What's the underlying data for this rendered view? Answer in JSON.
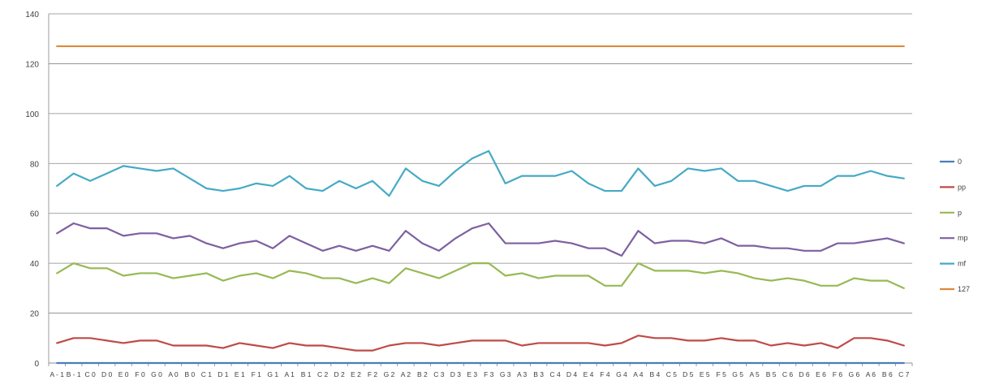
{
  "chart_data": {
    "type": "line",
    "title": "",
    "xlabel": "",
    "ylabel": "",
    "ylim": [
      0,
      140
    ],
    "yticks": [
      0,
      20,
      40,
      60,
      80,
      100,
      120,
      140
    ],
    "grid": "horizontal",
    "legend_position": "right",
    "categories": [
      "A-1",
      "B-1",
      "C0",
      "D0",
      "E0",
      "F0",
      "G0",
      "A0",
      "B0",
      "C1",
      "D1",
      "E1",
      "F1",
      "G1",
      "A1",
      "B1",
      "C2",
      "D2",
      "E2",
      "F2",
      "G2",
      "A2",
      "B2",
      "C3",
      "D3",
      "E3",
      "F3",
      "G3",
      "A3",
      "B3",
      "C4",
      "D4",
      "E4",
      "F4",
      "G4",
      "A4",
      "B4",
      "C5",
      "D5",
      "E5",
      "F5",
      "G5",
      "A5",
      "B5",
      "C6",
      "D6",
      "E6",
      "F6",
      "G6",
      "A6",
      "B6",
      "C7"
    ],
    "series": [
      {
        "name": "0",
        "color": "#4a7ebb",
        "values": [
          0,
          0,
          0,
          0,
          0,
          0,
          0,
          0,
          0,
          0,
          0,
          0,
          0,
          0,
          0,
          0,
          0,
          0,
          0,
          0,
          0,
          0,
          0,
          0,
          0,
          0,
          0,
          0,
          0,
          0,
          0,
          0,
          0,
          0,
          0,
          0,
          0,
          0,
          0,
          0,
          0,
          0,
          0,
          0,
          0,
          0,
          0,
          0,
          0,
          0,
          0,
          0
        ]
      },
      {
        "name": "pp",
        "color": "#be4b48",
        "values": [
          8,
          10,
          10,
          9,
          8,
          9,
          9,
          7,
          7,
          7,
          6,
          8,
          7,
          6,
          8,
          7,
          7,
          6,
          5,
          5,
          7,
          8,
          8,
          7,
          8,
          9,
          9,
          9,
          7,
          8,
          8,
          8,
          8,
          7,
          8,
          11,
          10,
          10,
          9,
          9,
          10,
          9,
          9,
          7,
          8,
          7,
          8,
          6,
          10,
          10,
          9,
          7
        ]
      },
      {
        "name": "p",
        "color": "#98b954",
        "values": [
          36,
          40,
          38,
          38,
          35,
          36,
          36,
          34,
          35,
          36,
          33,
          35,
          36,
          34,
          37,
          36,
          34,
          34,
          32,
          34,
          32,
          38,
          36,
          34,
          37,
          40,
          40,
          35,
          36,
          34,
          35,
          35,
          35,
          31,
          31,
          40,
          37,
          37,
          37,
          36,
          37,
          36,
          34,
          33,
          34,
          33,
          31,
          31,
          34,
          33,
          33,
          30
        ]
      },
      {
        "name": "mp",
        "color": "#7d60a0",
        "values": [
          52,
          56,
          54,
          54,
          51,
          52,
          52,
          50,
          51,
          48,
          46,
          48,
          49,
          46,
          51,
          48,
          45,
          47,
          45,
          47,
          45,
          53,
          48,
          45,
          50,
          54,
          56,
          48,
          48,
          48,
          49,
          48,
          46,
          46,
          43,
          53,
          48,
          49,
          49,
          48,
          50,
          47,
          47,
          46,
          46,
          45,
          45,
          48,
          48,
          49,
          50,
          48
        ]
      },
      {
        "name": "mf",
        "color": "#46aac5",
        "values": [
          71,
          76,
          73,
          76,
          79,
          78,
          77,
          78,
          74,
          70,
          69,
          70,
          72,
          71,
          75,
          70,
          69,
          73,
          70,
          73,
          67,
          78,
          73,
          71,
          77,
          82,
          85,
          72,
          75,
          75,
          75,
          77,
          72,
          69,
          69,
          78,
          71,
          73,
          78,
          77,
          78,
          73,
          73,
          71,
          69,
          71,
          71,
          75,
          75,
          77,
          75,
          74
        ]
      },
      {
        "name": "127",
        "color": "#dd8a3a",
        "values": [
          127,
          127,
          127,
          127,
          127,
          127,
          127,
          127,
          127,
          127,
          127,
          127,
          127,
          127,
          127,
          127,
          127,
          127,
          127,
          127,
          127,
          127,
          127,
          127,
          127,
          127,
          127,
          127,
          127,
          127,
          127,
          127,
          127,
          127,
          127,
          127,
          127,
          127,
          127,
          127,
          127,
          127,
          127,
          127,
          127,
          127,
          127,
          127,
          127,
          127,
          127,
          127
        ]
      }
    ]
  }
}
